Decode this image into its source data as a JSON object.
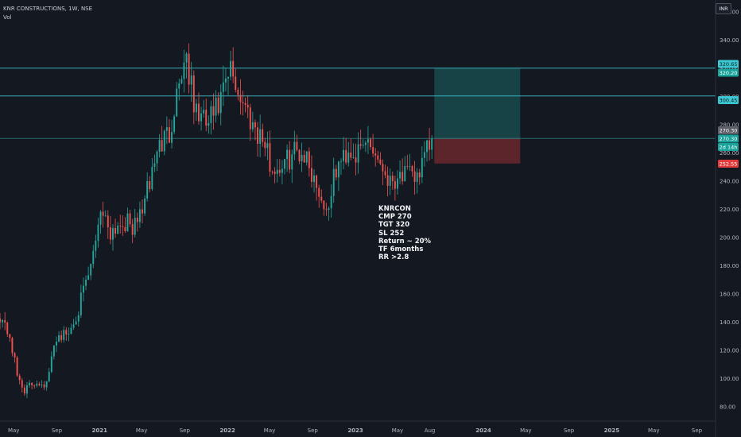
{
  "header": {
    "symbol_title": "KNR CONSTRUCTIONS, 1W, NSE",
    "indicator_label": "Vol",
    "currency": "INR"
  },
  "annotation": {
    "lines": [
      "KNRCON",
      "CMP 270",
      "TGT 320",
      "SL 252",
      "Return ~ 20%",
      "TF 6months",
      "RR >2.8"
    ]
  },
  "price_tags": [
    {
      "label": "320.65",
      "color": "#3cc8d2",
      "text_color": "#0b1a1e"
    },
    {
      "label": "320.20",
      "color": "#1aa39a",
      "text_color": "#ffffff"
    },
    {
      "label": "300.45",
      "color": "#3cc8d2",
      "text_color": "#0b1a1e"
    },
    {
      "label": "270.30",
      "color": "#5d6068",
      "text_color": "#ffffff"
    },
    {
      "label": "270.30",
      "color": "#1aa39a",
      "text_color": "#ffffff"
    },
    {
      "label": "2d 14h",
      "color": "#1aa39a",
      "text_color": "#ffffff"
    },
    {
      "label": "252.55",
      "color": "#e33b3b",
      "text_color": "#ffffff"
    }
  ],
  "colors": {
    "background": "#141821",
    "up_candle": "#26a69a",
    "down_candle": "#ef5350",
    "horizontal_line": "#3cc8d2",
    "target_zone": "#1f8c84",
    "stop_zone": "#c13a3a",
    "axis_text": "#b2b5be"
  },
  "chart_data": {
    "type": "candlestick",
    "title": "KNR CONSTRUCTIONS, 1W, NSE",
    "xlabel": "",
    "ylabel": "",
    "y_ticks": [
      80,
      100,
      120,
      140,
      160,
      180,
      200,
      220,
      240,
      260,
      280,
      300,
      320,
      340,
      360
    ],
    "y_tick_labels": [
      "80.00",
      "100.00",
      "120.00",
      "140.00",
      "160.00",
      "180.00",
      "200.00",
      "220.00",
      "240.00",
      "260.00",
      "280.00",
      "300.00",
      "320.00",
      "340.00",
      "360.00"
    ],
    "ylim": [
      71,
      364
    ],
    "x_tick_labels": [
      "May",
      "Sep",
      "2021",
      "May",
      "Sep",
      "2022",
      "May",
      "Sep",
      "2023",
      "May",
      "Aug",
      "2024",
      "May",
      "Sep",
      "2025",
      "May",
      "Sep"
    ],
    "x_tick_dates": [
      "2020-05-01",
      "2020-09-01",
      "2021-01-01",
      "2021-05-01",
      "2021-09-01",
      "2022-01-01",
      "2022-05-01",
      "2022-09-01",
      "2023-01-01",
      "2023-05-01",
      "2023-08-01",
      "2024-01-01",
      "2024-05-01",
      "2024-09-01",
      "2025-01-01",
      "2025-05-01",
      "2025-09-01"
    ],
    "x_range": [
      "2020-03-23",
      "2025-10-13"
    ],
    "horizontal_lines": [
      320.2,
      300.45,
      270.3
    ],
    "position": {
      "entry": 270.3,
      "target": 320.2,
      "stop": 252.55,
      "start": "2023-08-14",
      "end": "2024-04-15"
    },
    "key_points": [
      {
        "date": "2020-03-23",
        "close": 145
      },
      {
        "date": "2020-04-20",
        "close": 130
      },
      {
        "date": "2020-05-11",
        "close": 102
      },
      {
        "date": "2020-06-01",
        "close": 92
      },
      {
        "date": "2020-07-06",
        "close": 98
      },
      {
        "date": "2020-08-03",
        "close": 96
      },
      {
        "date": "2020-08-31",
        "close": 130
      },
      {
        "date": "2020-10-05",
        "close": 132
      },
      {
        "date": "2020-11-02",
        "close": 150
      },
      {
        "date": "2020-12-07",
        "close": 178
      },
      {
        "date": "2021-01-04",
        "close": 222
      },
      {
        "date": "2021-02-01",
        "close": 205
      },
      {
        "date": "2021-03-08",
        "close": 212
      },
      {
        "date": "2021-04-12",
        "close": 207
      },
      {
        "date": "2021-05-17",
        "close": 232
      },
      {
        "date": "2021-06-14",
        "close": 262
      },
      {
        "date": "2021-07-19",
        "close": 275
      },
      {
        "date": "2021-08-16",
        "close": 312
      },
      {
        "date": "2021-09-06",
        "close": 330
      },
      {
        "date": "2021-09-27",
        "close": 292
      },
      {
        "date": "2021-11-01",
        "close": 280
      },
      {
        "date": "2021-12-06",
        "close": 292
      },
      {
        "date": "2022-01-10",
        "close": 318
      },
      {
        "date": "2022-02-07",
        "close": 300
      },
      {
        "date": "2022-03-14",
        "close": 282
      },
      {
        "date": "2022-04-11",
        "close": 270
      },
      {
        "date": "2022-05-09",
        "close": 248
      },
      {
        "date": "2022-06-13",
        "close": 252
      },
      {
        "date": "2022-07-11",
        "close": 262
      },
      {
        "date": "2022-08-08",
        "close": 260
      },
      {
        "date": "2022-09-12",
        "close": 238
      },
      {
        "date": "2022-10-10",
        "close": 218
      },
      {
        "date": "2022-11-07",
        "close": 248
      },
      {
        "date": "2022-12-12",
        "close": 263
      },
      {
        "date": "2023-01-09",
        "close": 258
      },
      {
        "date": "2023-02-06",
        "close": 270
      },
      {
        "date": "2023-03-06",
        "close": 257
      },
      {
        "date": "2023-04-10",
        "close": 240
      },
      {
        "date": "2023-05-08",
        "close": 246
      },
      {
        "date": "2023-06-12",
        "close": 242
      },
      {
        "date": "2023-07-10",
        "close": 250
      },
      {
        "date": "2023-08-07",
        "close": 270.3
      }
    ]
  }
}
